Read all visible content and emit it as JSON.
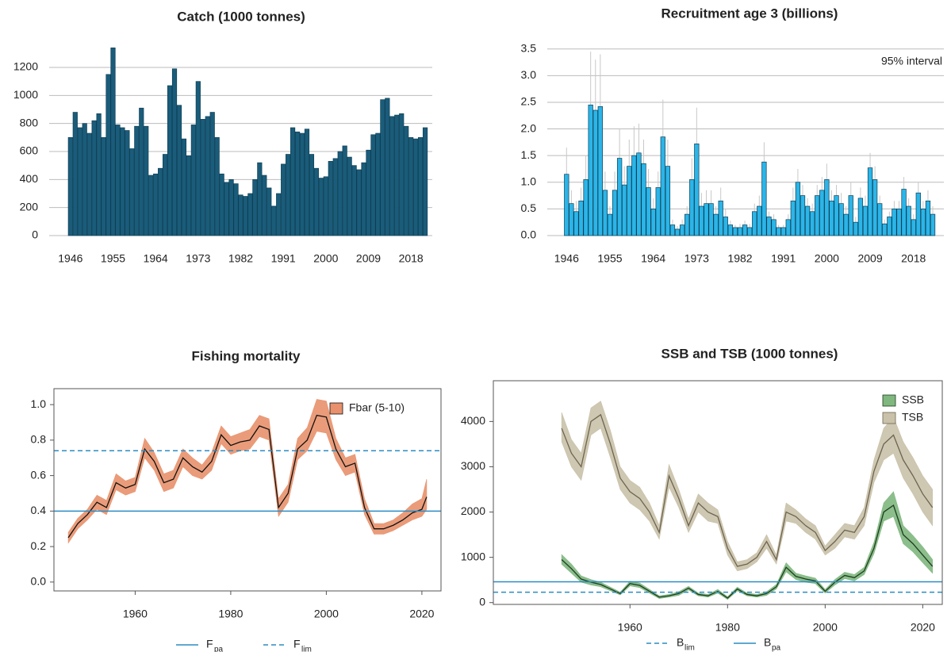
{
  "chart_data": [
    {
      "type": "bar",
      "title": "Catch (1000 tonnes)",
      "x": [
        1946,
        1947,
        1948,
        1949,
        1950,
        1951,
        1952,
        1953,
        1954,
        1955,
        1956,
        1957,
        1958,
        1959,
        1960,
        1961,
        1962,
        1963,
        1964,
        1965,
        1966,
        1967,
        1968,
        1969,
        1970,
        1971,
        1972,
        1973,
        1974,
        1975,
        1976,
        1977,
        1978,
        1979,
        1980,
        1981,
        1982,
        1983,
        1984,
        1985,
        1986,
        1987,
        1988,
        1989,
        1990,
        1991,
        1992,
        1993,
        1994,
        1995,
        1996,
        1997,
        1998,
        1999,
        2000,
        2001,
        2002,
        2003,
        2004,
        2005,
        2006,
        2007,
        2008,
        2009,
        2010,
        2011,
        2012,
        2013,
        2014,
        2015,
        2016,
        2017,
        2018,
        2019,
        2020,
        2021
      ],
      "values": [
        700,
        880,
        770,
        800,
        730,
        820,
        870,
        700,
        1150,
        1340,
        790,
        770,
        750,
        620,
        780,
        910,
        780,
        430,
        440,
        480,
        580,
        1070,
        1190,
        930,
        690,
        570,
        790,
        1100,
        830,
        850,
        880,
        700,
        440,
        380,
        400,
        370,
        290,
        280,
        300,
        400,
        520,
        430,
        340,
        210,
        300,
        510,
        580,
        770,
        740,
        730,
        760,
        580,
        480,
        410,
        420,
        530,
        550,
        600,
        640,
        560,
        500,
        470,
        520,
        610,
        720,
        730,
        970,
        980,
        850,
        860,
        870,
        780,
        700,
        690,
        700,
        770
      ],
      "color": "#1a5c7a",
      "xlim": [
        1941.5,
        2022.5
      ],
      "xticks": [
        1946,
        1955,
        1964,
        1973,
        1982,
        1991,
        2000,
        2009,
        2018
      ],
      "ylim": [
        0,
        1370
      ],
      "yticks": [
        0,
        200,
        400,
        600,
        800,
        1000,
        1200
      ],
      "grid": true
    },
    {
      "type": "bar",
      "title": "Recruitment age 3 (billions)",
      "annotation": "95% interval",
      "x": [
        1946,
        1947,
        1948,
        1949,
        1950,
        1951,
        1952,
        1953,
        1954,
        1955,
        1956,
        1957,
        1958,
        1959,
        1960,
        1961,
        1962,
        1963,
        1964,
        1965,
        1966,
        1967,
        1968,
        1969,
        1970,
        1971,
        1972,
        1973,
        1974,
        1975,
        1976,
        1977,
        1978,
        1979,
        1980,
        1981,
        1982,
        1983,
        1984,
        1985,
        1986,
        1987,
        1988,
        1989,
        1990,
        1991,
        1992,
        1993,
        1994,
        1995,
        1996,
        1997,
        1998,
        1999,
        2000,
        2001,
        2002,
        2003,
        2004,
        2005,
        2006,
        2007,
        2008,
        2009,
        2010,
        2011,
        2012,
        2013,
        2014,
        2015,
        2016,
        2017,
        2018,
        2019,
        2020,
        2021,
        2022
      ],
      "values": [
        1.15,
        0.6,
        0.45,
        0.65,
        1.05,
        2.45,
        2.35,
        2.42,
        0.85,
        0.4,
        0.85,
        1.45,
        0.95,
        1.3,
        1.5,
        1.55,
        1.35,
        0.9,
        0.5,
        0.9,
        1.85,
        1.3,
        0.2,
        0.12,
        0.2,
        0.4,
        1.05,
        1.72,
        0.55,
        0.6,
        0.6,
        0.4,
        0.65,
        0.35,
        0.2,
        0.15,
        0.15,
        0.2,
        0.15,
        0.45,
        0.55,
        1.38,
        0.35,
        0.3,
        0.15,
        0.15,
        0.3,
        0.65,
        1.0,
        0.75,
        0.55,
        0.45,
        0.75,
        0.85,
        1.05,
        0.65,
        0.75,
        0.6,
        0.4,
        0.75,
        0.25,
        0.7,
        0.55,
        1.27,
        1.05,
        0.6,
        0.22,
        0.35,
        0.5,
        0.5,
        0.87,
        0.55,
        0.3,
        0.8,
        0.5,
        0.65,
        0.4
      ],
      "upper": [
        1.65,
        0.85,
        0.65,
        0.9,
        1.5,
        3.45,
        3.3,
        3.4,
        1.2,
        0.55,
        1.2,
        2.0,
        1.3,
        1.8,
        2.05,
        2.1,
        1.8,
        1.25,
        0.7,
        1.2,
        2.55,
        1.8,
        0.3,
        0.18,
        0.3,
        0.55,
        1.45,
        2.4,
        0.8,
        0.85,
        0.85,
        0.55,
        0.9,
        0.5,
        0.28,
        0.2,
        0.22,
        0.28,
        0.22,
        0.6,
        0.75,
        1.75,
        0.45,
        0.4,
        0.2,
        0.2,
        0.4,
        0.9,
        1.25,
        0.95,
        0.7,
        0.6,
        0.95,
        1.1,
        1.35,
        0.85,
        0.95,
        0.8,
        0.55,
        1.0,
        0.35,
        0.9,
        0.75,
        1.55,
        1.3,
        0.75,
        0.3,
        0.45,
        0.65,
        0.65,
        1.1,
        0.7,
        0.4,
        1.0,
        0.65,
        0.85,
        0.55
      ],
      "color": "#2bb5e8",
      "xlim": [
        1942,
        2024.3
      ],
      "xticks": [
        1946,
        1955,
        1964,
        1973,
        1982,
        1991,
        2000,
        2009,
        2018
      ],
      "ylim": [
        0,
        3.6
      ],
      "yticks": [
        {
          "value": 0,
          "label": "0.0"
        },
        0.5,
        {
          "value": 1,
          "label": "1.0"
        },
        1.5,
        {
          "value": 2,
          "label": "2.0"
        },
        2.5,
        {
          "value": 3,
          "label": "3.0"
        },
        3.5
      ],
      "grid": true
    },
    {
      "type": "line",
      "title": "Fishing mortality",
      "frame": true,
      "legend": "topright",
      "x": [
        1946,
        1948,
        1950,
        1952,
        1954,
        1956,
        1958,
        1960,
        1962,
        1964,
        1966,
        1968,
        1970,
        1972,
        1974,
        1976,
        1978,
        1980,
        1982,
        1984,
        1986,
        1988,
        1990,
        1992,
        1994,
        1996,
        1998,
        2000,
        2002,
        2004,
        2006,
        2008,
        2010,
        2012,
        2014,
        2016,
        2018,
        2020,
        2021
      ],
      "series": [
        {
          "name": "Fbar (5-10)",
          "color": "#111111",
          "band_color": "#e8916c",
          "values": [
            0.25,
            0.33,
            0.38,
            0.45,
            0.42,
            0.56,
            0.53,
            0.55,
            0.75,
            0.68,
            0.56,
            0.58,
            0.7,
            0.65,
            0.62,
            0.68,
            0.83,
            0.77,
            0.79,
            0.8,
            0.88,
            0.86,
            0.42,
            0.5,
            0.75,
            0.8,
            0.94,
            0.93,
            0.75,
            0.65,
            0.67,
            0.42,
            0.3,
            0.3,
            0.32,
            0.35,
            0.39,
            0.41,
            0.48
          ],
          "lower": [
            0.22,
            0.3,
            0.35,
            0.41,
            0.38,
            0.52,
            0.49,
            0.51,
            0.7,
            0.63,
            0.51,
            0.53,
            0.65,
            0.6,
            0.58,
            0.63,
            0.78,
            0.72,
            0.74,
            0.75,
            0.82,
            0.8,
            0.37,
            0.45,
            0.69,
            0.74,
            0.85,
            0.84,
            0.69,
            0.6,
            0.62,
            0.38,
            0.27,
            0.27,
            0.29,
            0.32,
            0.35,
            0.37,
            0.41
          ],
          "upper": [
            0.28,
            0.36,
            0.41,
            0.49,
            0.46,
            0.61,
            0.57,
            0.59,
            0.81,
            0.73,
            0.61,
            0.63,
            0.75,
            0.7,
            0.66,
            0.73,
            0.88,
            0.82,
            0.84,
            0.86,
            0.94,
            0.92,
            0.47,
            0.55,
            0.81,
            0.87,
            1.03,
            1.02,
            0.81,
            0.7,
            0.72,
            0.47,
            0.33,
            0.33,
            0.35,
            0.39,
            0.44,
            0.47,
            0.58
          ]
        }
      ],
      "reference_lines": [
        {
          "label": "F",
          "sub": "pa",
          "value": 0.4,
          "dash": false,
          "color": "#2b8cc4"
        },
        {
          "label": "F",
          "sub": "lim",
          "value": 0.74,
          "dash": true,
          "color": "#2b8cc4"
        }
      ],
      "xlim": [
        1943,
        2024
      ],
      "xticks": [
        1960,
        1980,
        2000,
        2020
      ],
      "ylim": [
        -0.05,
        1.09
      ],
      "yticks": [
        {
          "value": 0,
          "label": "0.0"
        },
        0.2,
        0.4,
        0.6,
        0.8,
        {
          "value": 1,
          "label": "1.0"
        }
      ]
    },
    {
      "type": "line",
      "title": "SSB and TSB (1000 tonnes)",
      "frame": true,
      "legend": "topright",
      "x": [
        1946,
        1948,
        1950,
        1952,
        1954,
        1956,
        1958,
        1960,
        1962,
        1964,
        1966,
        1968,
        1970,
        1972,
        1974,
        1976,
        1978,
        1980,
        1982,
        1984,
        1986,
        1988,
        1990,
        1992,
        1994,
        1996,
        1998,
        2000,
        2002,
        2004,
        2006,
        2008,
        2010,
        2012,
        2014,
        2016,
        2018,
        2020,
        2022
      ],
      "series": [
        {
          "name": "SSB",
          "color": "#1e3d1e",
          "band_color": "#7fb77f",
          "values": [
            950,
            750,
            520,
            450,
            400,
            300,
            200,
            420,
            380,
            250,
            120,
            150,
            200,
            320,
            180,
            150,
            250,
            100,
            300,
            180,
            150,
            200,
            350,
            780,
            580,
            520,
            480,
            250,
            450,
            600,
            550,
            700,
            1200,
            2000,
            2150,
            1500,
            1300,
            1050,
            800
          ],
          "lower": [
            850,
            650,
            450,
            390,
            350,
            260,
            170,
            370,
            330,
            210,
            90,
            120,
            160,
            280,
            150,
            120,
            210,
            70,
            260,
            150,
            120,
            160,
            300,
            680,
            510,
            450,
            420,
            210,
            390,
            530,
            480,
            620,
            1080,
            1800,
            1900,
            1300,
            1120,
            880,
            650
          ],
          "upper": [
            1060,
            850,
            590,
            510,
            450,
            340,
            230,
            470,
            430,
            290,
            150,
            180,
            240,
            360,
            210,
            180,
            290,
            130,
            340,
            210,
            180,
            240,
            400,
            880,
            650,
            590,
            540,
            290,
            510,
            670,
            620,
            780,
            1330,
            2200,
            2450,
            1700,
            1480,
            1230,
            950
          ]
        },
        {
          "name": "TSB",
          "color": "#6e6450",
          "band_color": "#c9c1a9",
          "values": [
            3850,
            3300,
            3000,
            4000,
            4150,
            3500,
            2750,
            2450,
            2300,
            2000,
            1550,
            2800,
            2300,
            1700,
            2200,
            2000,
            1900,
            1200,
            800,
            850,
            1000,
            1350,
            950,
            2000,
            1900,
            1700,
            1550,
            1150,
            1350,
            1600,
            1550,
            1900,
            2900,
            3500,
            3700,
            3150,
            2800,
            2400,
            2100
          ],
          "lower": [
            3550,
            3000,
            2700,
            3700,
            3850,
            3200,
            2500,
            2200,
            2050,
            1800,
            1400,
            2550,
            2100,
            1550,
            2000,
            1800,
            1750,
            1050,
            700,
            750,
            900,
            1200,
            850,
            1800,
            1750,
            1550,
            1400,
            1050,
            1200,
            1450,
            1400,
            1700,
            2650,
            3150,
            3300,
            2750,
            2400,
            2000,
            1700
          ],
          "upper": [
            4200,
            3600,
            3300,
            4300,
            4450,
            3800,
            3000,
            2700,
            2550,
            2200,
            1700,
            3050,
            2500,
            1850,
            2400,
            2200,
            2050,
            1350,
            900,
            950,
            1100,
            1500,
            1050,
            2200,
            2050,
            1850,
            1700,
            1250,
            1500,
            1750,
            1700,
            2100,
            3150,
            3850,
            4100,
            3550,
            3200,
            2800,
            2500
          ]
        }
      ],
      "reference_lines": [
        {
          "label": "B",
          "sub": "lim",
          "value": 230,
          "dash": true,
          "color": "#2b8cc4"
        },
        {
          "label": "B",
          "sub": "pa",
          "value": 460,
          "dash": false,
          "color": "#2b8cc4"
        }
      ],
      "xlim": [
        1932,
        2024
      ],
      "xticks": [
        1960,
        1980,
        2000,
        2020
      ],
      "ylim": [
        -40,
        4900
      ],
      "yticks": [
        0,
        1000,
        2000,
        3000,
        4000
      ]
    }
  ]
}
